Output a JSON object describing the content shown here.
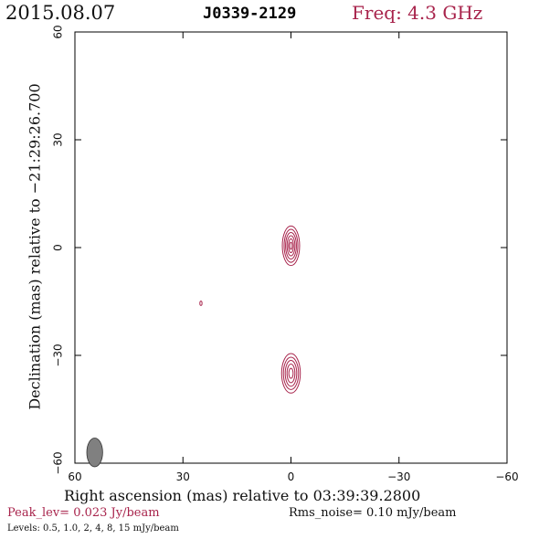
{
  "header": {
    "date": "2015.08.07",
    "source": "J0339-2129",
    "freq": "Freq: 4.3 GHz"
  },
  "footer": {
    "peak": "Peak_lev=  0.023 Jy/beam",
    "rms": "Rms_noise= 0.10 mJy/beam",
    "levels": "Levels: 0.5, 1.0,   2,   4,   8,  15 mJy/beam"
  },
  "colors": {
    "contour": "#a8244c",
    "beam": "#808080",
    "axis": "#000000"
  },
  "chart_data": {
    "type": "contour",
    "xlabel": "Right ascension (mas) relative to 03:39:39.2800",
    "ylabel": "Declination (mas) relative to −21:29:26.700",
    "xlim": [
      60,
      -60
    ],
    "ylim": [
      -60,
      60
    ],
    "xticks": [
      60,
      30,
      0,
      -30,
      -60
    ],
    "yticks": [
      -60,
      -30,
      0,
      30,
      60
    ],
    "xtick_labels": [
      "60",
      "30",
      "0",
      "−30",
      "−60"
    ],
    "ytick_labels": [
      "−60",
      "−30",
      "0",
      "30",
      "60"
    ],
    "levels_mJy": [
      0.5,
      1.0,
      2,
      4,
      8,
      15
    ],
    "components": [
      {
        "name": "core",
        "x": 0,
        "y": 0.5,
        "levels": [
          {
            "rx": 2.4,
            "ry": 5.5
          },
          {
            "rx": 1.9,
            "ry": 4.6
          },
          {
            "rx": 1.5,
            "ry": 3.7
          },
          {
            "rx": 1.1,
            "ry": 2.8
          },
          {
            "rx": 0.7,
            "ry": 1.9
          },
          {
            "rx": 0.35,
            "ry": 1.0
          }
        ]
      },
      {
        "name": "southern",
        "x": 0,
        "y": -35,
        "levels": [
          {
            "rx": 2.6,
            "ry": 5.5
          },
          {
            "rx": 2.1,
            "ry": 4.5
          },
          {
            "rx": 1.6,
            "ry": 3.6
          },
          {
            "rx": 1.1,
            "ry": 2.6
          },
          {
            "rx": 0.6,
            "ry": 1.4
          }
        ]
      },
      {
        "name": "isolated",
        "x": 25,
        "y": -15.5,
        "levels": [
          {
            "rx": 0.3,
            "ry": 0.6
          }
        ]
      }
    ],
    "beam": {
      "x": 54.5,
      "y": -57,
      "major_mas": 4.0,
      "minor_mas": 2.2
    }
  }
}
